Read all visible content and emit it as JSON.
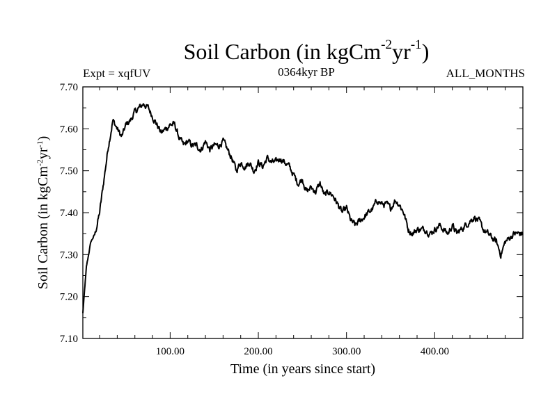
{
  "chart_data": {
    "type": "line",
    "title_main": "Soil Carbon (in kgCm",
    "title_exp1": "-2",
    "title_mid": "yr",
    "title_exp2": "-1",
    "title_close": ")",
    "expt_label": "Expt = xqfUV",
    "period_label": "0364kyr BP",
    "months_label": "ALL_MONTHS",
    "xlabel": "Time (in years since start)",
    "ylabel_main": "Soil Carbon (in kgCm",
    "ylabel_exp1": "-2",
    "ylabel_mid": "yr",
    "ylabel_exp2": "-1",
    "ylabel_close": ")",
    "xlim": [
      1,
      500
    ],
    "ylim": [
      7.1,
      7.7
    ],
    "x_ticks": [
      100,
      200,
      300,
      400
    ],
    "x_tick_labels": [
      "100.00",
      "200.00",
      "300.00",
      "400.00"
    ],
    "y_ticks": [
      7.1,
      7.2,
      7.3,
      7.4,
      7.5,
      7.6,
      7.7
    ],
    "y_tick_labels": [
      "7.10",
      "7.20",
      "7.30",
      "7.40",
      "7.50",
      "7.60",
      "7.70"
    ],
    "series": [
      {
        "name": "Soil Carbon",
        "x": [
          1,
          5,
          10,
          15,
          20,
          25,
          30,
          35,
          40,
          45,
          50,
          55,
          60,
          65,
          70,
          75,
          80,
          85,
          90,
          95,
          100,
          105,
          110,
          115,
          120,
          125,
          130,
          135,
          140,
          145,
          150,
          155,
          160,
          165,
          170,
          175,
          180,
          185,
          190,
          195,
          200,
          205,
          210,
          215,
          220,
          225,
          230,
          235,
          240,
          245,
          250,
          255,
          260,
          265,
          270,
          275,
          280,
          285,
          290,
          295,
          300,
          305,
          310,
          315,
          320,
          325,
          330,
          335,
          340,
          345,
          350,
          355,
          360,
          365,
          370,
          375,
          380,
          385,
          390,
          395,
          400,
          405,
          410,
          415,
          420,
          425,
          430,
          435,
          440,
          445,
          450,
          455,
          460,
          465,
          470,
          475,
          480,
          485,
          490,
          495,
          500
        ],
        "values": [
          7.16,
          7.27,
          7.33,
          7.35,
          7.4,
          7.48,
          7.56,
          7.62,
          7.6,
          7.58,
          7.61,
          7.62,
          7.64,
          7.65,
          7.66,
          7.65,
          7.63,
          7.61,
          7.59,
          7.6,
          7.61,
          7.61,
          7.58,
          7.56,
          7.57,
          7.56,
          7.56,
          7.55,
          7.57,
          7.55,
          7.56,
          7.56,
          7.57,
          7.55,
          7.53,
          7.5,
          7.52,
          7.51,
          7.52,
          7.5,
          7.52,
          7.51,
          7.53,
          7.52,
          7.52,
          7.53,
          7.52,
          7.51,
          7.49,
          7.47,
          7.48,
          7.45,
          7.46,
          7.45,
          7.47,
          7.44,
          7.45,
          7.44,
          7.42,
          7.4,
          7.41,
          7.38,
          7.37,
          7.38,
          7.39,
          7.4,
          7.41,
          7.43,
          7.42,
          7.42,
          7.41,
          7.43,
          7.42,
          7.4,
          7.36,
          7.35,
          7.36,
          7.36,
          7.36,
          7.35,
          7.36,
          7.37,
          7.36,
          7.35,
          7.37,
          7.35,
          7.36,
          7.37,
          7.38,
          7.39,
          7.38,
          7.36,
          7.35,
          7.34,
          7.33,
          7.3,
          7.33,
          7.34,
          7.35,
          7.35,
          7.35
        ]
      }
    ]
  }
}
